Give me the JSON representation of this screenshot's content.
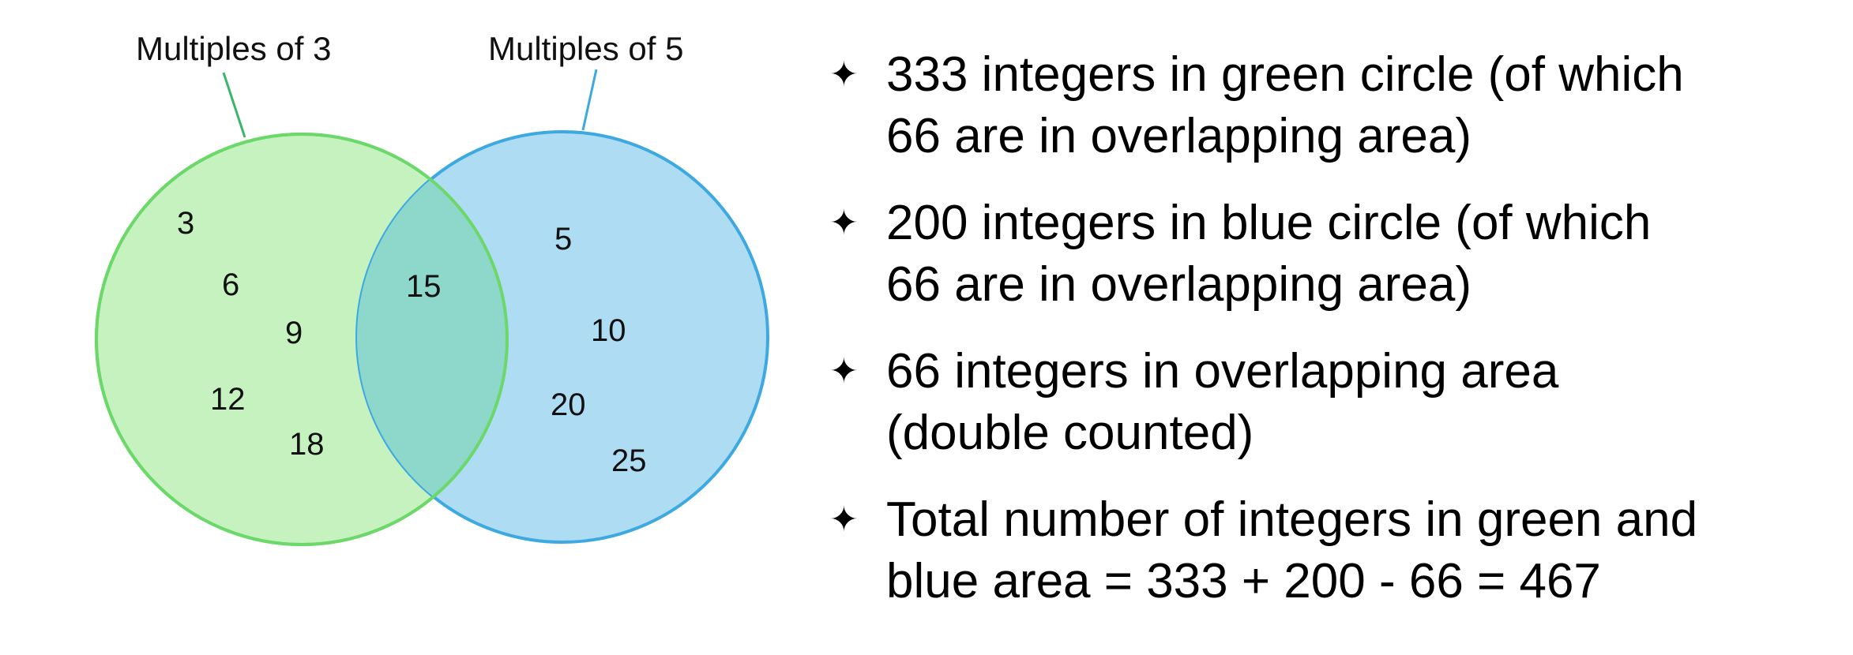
{
  "diagram": {
    "colors": {
      "green_fill": "#c6f2c0",
      "green_stroke": "#6cd86a",
      "blue_fill": "#aedcf3",
      "blue_stroke": "#3ea9e1",
      "overlap_fill": "#8ed7cb"
    },
    "labels": {
      "green_label": "Multiples of 3",
      "blue_label": "Multiples of 5"
    },
    "green_only_numbers": [
      "3",
      "6",
      "9",
      "12",
      "18"
    ],
    "overlap_numbers": [
      "15"
    ],
    "blue_only_numbers": [
      "5",
      "10",
      "20",
      "25"
    ]
  },
  "bullets": [
    {
      "icon": "four-pointed-star-icon",
      "lines": [
        "333 integers in green circle (of which",
        "66 are in overlapping area)"
      ]
    },
    {
      "icon": "four-pointed-star-icon",
      "lines": [
        "200 integers in blue circle (of which",
        "66 are in overlapping area)"
      ]
    },
    {
      "icon": "four-pointed-star-icon",
      "lines": [
        "66 integers in overlapping area",
        "(double counted)"
      ]
    },
    {
      "icon": "four-pointed-star-icon",
      "lines": [
        "Total number of integers in green and",
        "blue area = 333 + 200 - 66 = 467"
      ]
    }
  ]
}
